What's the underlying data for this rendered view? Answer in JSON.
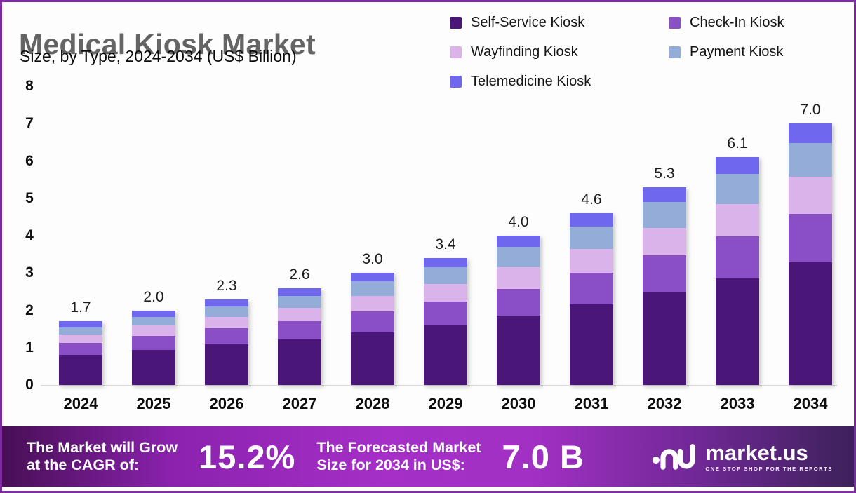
{
  "header": {
    "title": "Medical Kiosk Market",
    "subtitle": "Size, by Type, 2024-2034 (US$ Billion)"
  },
  "legend": [
    {
      "label": "Self-Service Kiosk",
      "color": "#4A1778"
    },
    {
      "label": "Check-In Kiosk",
      "color": "#8B4FC5"
    },
    {
      "label": "Wayfinding Kiosk",
      "color": "#D9B3EA"
    },
    {
      "label": "Payment Kiosk",
      "color": "#93ACD8"
    },
    {
      "label": "Telemedicine Kiosk",
      "color": "#6F68EE"
    }
  ],
  "chart_data": {
    "type": "bar",
    "stacked": true,
    "title": "Medical Kiosk Market Size, by Type, 2024-2034 (US$ Billion)",
    "x": [
      "2024",
      "2025",
      "2026",
      "2027",
      "2028",
      "2029",
      "2030",
      "2031",
      "2032",
      "2033",
      "2034"
    ],
    "totals": [
      1.7,
      2.0,
      2.3,
      2.6,
      3.0,
      3.4,
      4.0,
      4.6,
      5.3,
      6.1,
      7.0
    ],
    "total_labels": [
      "1.7",
      "2.0",
      "2.3",
      "2.6",
      "3.0",
      "3.4",
      "4.0",
      "4.6",
      "5.3",
      "6.1",
      "7.0"
    ],
    "series": [
      {
        "name": "Self-Service Kiosk",
        "color": "#4A1778",
        "values": [
          0.8,
          0.94,
          1.08,
          1.22,
          1.41,
          1.6,
          1.85,
          2.16,
          2.49,
          2.86,
          3.29
        ]
      },
      {
        "name": "Check-In Kiosk",
        "color": "#8B4FC5",
        "values": [
          0.33,
          0.38,
          0.44,
          0.49,
          0.56,
          0.64,
          0.73,
          0.85,
          0.98,
          1.12,
          1.3
        ]
      },
      {
        "name": "Wayfinding Kiosk",
        "color": "#D9B3EA",
        "values": [
          0.23,
          0.27,
          0.31,
          0.36,
          0.42,
          0.47,
          0.58,
          0.64,
          0.74,
          0.86,
          0.98
        ]
      },
      {
        "name": "Payment Kiosk",
        "color": "#93ACD8",
        "values": [
          0.18,
          0.23,
          0.28,
          0.32,
          0.38,
          0.45,
          0.54,
          0.6,
          0.69,
          0.81,
          0.91
        ]
      },
      {
        "name": "Telemedicine Kiosk",
        "color": "#6F68EE",
        "values": [
          0.16,
          0.18,
          0.19,
          0.21,
          0.23,
          0.24,
          0.3,
          0.35,
          0.4,
          0.45,
          0.52
        ]
      }
    ],
    "ylim": [
      0,
      8
    ],
    "yticks": [
      0,
      1,
      2,
      3,
      4,
      5,
      6,
      7,
      8
    ],
    "ylabel": "",
    "xlabel": "",
    "grid": false,
    "legend_position": "top-right",
    "axis_line_color": "#d8d8d8"
  },
  "footer": {
    "cagr_label": "The Market will Grow\nat the CAGR of:",
    "cagr_value": "15.2%",
    "forecast_label": "The Forecasted Market\nSize for 2034 in US$:",
    "forecast_value": "7.0 B",
    "brand": "market.us",
    "tagline": "ONE STOP SHOP FOR THE REPORTS",
    "banner_colors": [
      "#470F55",
      "#A52FC7",
      "#3D215A"
    ]
  }
}
